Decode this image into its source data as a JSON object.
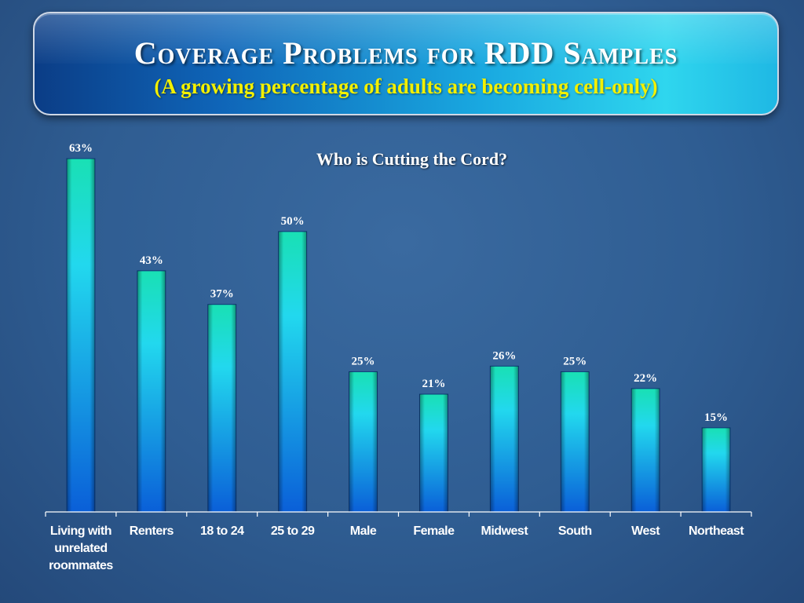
{
  "header": {
    "title": "Coverage Problems for RDD Samples",
    "subtitle": "(A growing percentage of adults are becoming cell-only)"
  },
  "chart_data": {
    "type": "bar",
    "title": "Who is Cutting the Cord?",
    "categories": [
      [
        "Living with",
        "unrelated",
        "roommates"
      ],
      [
        "Renters"
      ],
      [
        "18 to 24"
      ],
      [
        "25 to 29"
      ],
      [
        "Male"
      ],
      [
        "Female"
      ],
      [
        "Midwest"
      ],
      [
        "South"
      ],
      [
        "West"
      ],
      [
        "Northeast"
      ]
    ],
    "values": [
      63,
      43,
      37,
      50,
      25,
      21,
      26,
      25,
      22,
      15
    ],
    "value_labels": [
      "63%",
      "43%",
      "37%",
      "50%",
      "25%",
      "21%",
      "26%",
      "25%",
      "22%",
      "15%"
    ],
    "ylim": [
      0,
      63
    ],
    "grid": false,
    "colors": {
      "bar_top": "#19e0b4",
      "bar_mid": "#22d8ee",
      "bar_bottom": "#0a5fd8",
      "axis": "#ffffff"
    }
  }
}
